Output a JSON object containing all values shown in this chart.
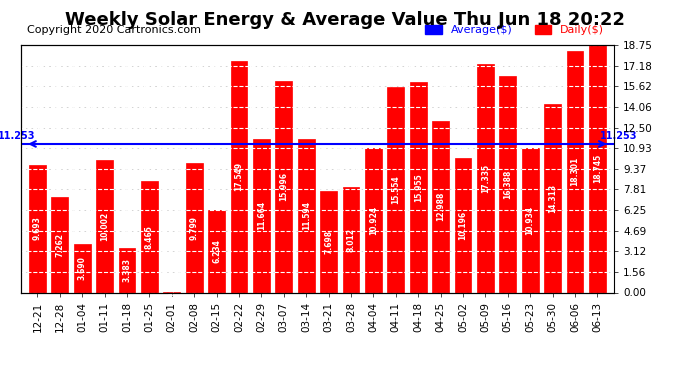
{
  "title": "Weekly Solar Energy & Average Value Thu Jun 18 20:22",
  "copyright": "Copyright 2020 Cartronics.com",
  "average_label": "Average($)",
  "daily_label": "Daily($)",
  "average_value": 11.253,
  "categories": [
    "12-21",
    "12-28",
    "01-04",
    "01-11",
    "01-18",
    "01-25",
    "02-01",
    "02-08",
    "02-15",
    "02-22",
    "02-29",
    "03-07",
    "03-14",
    "03-21",
    "03-28",
    "04-04",
    "04-11",
    "04-18",
    "04-25",
    "05-02",
    "05-09",
    "05-16",
    "05-23",
    "05-30",
    "06-06",
    "06-13"
  ],
  "values": [
    9.693,
    7.262,
    3.69,
    10.002,
    3.383,
    8.465,
    0.008,
    9.799,
    6.234,
    17.549,
    11.664,
    15.996,
    11.594,
    7.698,
    8.012,
    10.924,
    15.554,
    15.955,
    12.988,
    10.196,
    17.335,
    16.388,
    10.934,
    14.313,
    18.301,
    18.745
  ],
  "bar_color": "#ff0000",
  "bar_edge_color": "#ff0000",
  "dashed_line_color": "white",
  "average_line_color": "blue",
  "yticks": [
    0.0,
    1.56,
    3.12,
    4.69,
    6.25,
    7.81,
    9.37,
    10.93,
    12.5,
    14.06,
    15.62,
    17.18,
    18.75
  ],
  "ylim": [
    0,
    18.75
  ],
  "background_color": "#ffffff",
  "plot_bg_color": "#ffffff",
  "grid_color": "#cccccc",
  "average_annotation": "11.253",
  "title_fontsize": 13,
  "copyright_fontsize": 8,
  "label_fontsize": 7,
  "tick_fontsize": 7.5
}
